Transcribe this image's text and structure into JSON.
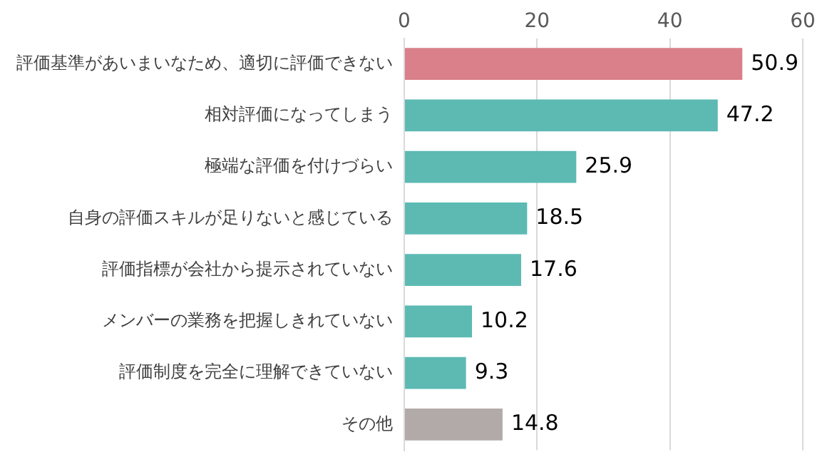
{
  "chart_data": {
    "type": "bar",
    "orientation": "horizontal",
    "categories": [
      "評価基準があいまいなため、適切に評価できない",
      "相対評価になってしまう",
      "極端な評価を付けづらい",
      "自身の評価スキルが足りないと感じている",
      "評価指標が会社から提示されていない",
      "メンバーの業務を把握しきれていない",
      "評価制度を完全に理解できていない",
      "その他"
    ],
    "values": [
      50.9,
      47.2,
      25.9,
      18.5,
      17.6,
      10.2,
      9.3,
      14.8
    ],
    "colors": [
      "#d9808a",
      "#5cbab3",
      "#5cbab3",
      "#5cbab3",
      "#5cbab3",
      "#5cbab3",
      "#5cbab3",
      "#b2aaa9"
    ],
    "xlim": [
      0,
      60
    ],
    "xticks": [
      0,
      20,
      40,
      60
    ],
    "grid": "x",
    "data_labels": true
  }
}
